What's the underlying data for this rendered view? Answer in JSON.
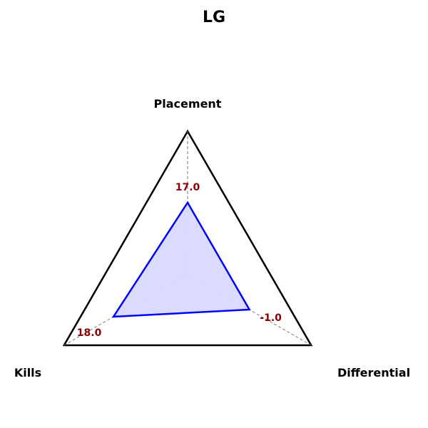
{
  "chart_data": {
    "type": "radar",
    "title": "LG",
    "axes": [
      "Placement",
      "Kills",
      "Differential"
    ],
    "series": [
      {
        "values": [
          17.0,
          18.0,
          -1.0
        ]
      }
    ],
    "value_labels": [
      "17.0",
      "18.0",
      "-1.0"
    ],
    "normalized_levels": [
      0.5,
      0.6,
      0.5
    ],
    "colors": {
      "outline": "#000000",
      "series_line": "#0000ff",
      "series_fill": "#d9d9ff",
      "value_text": "#8b0000",
      "spoke": "#707070"
    },
    "grid": true
  }
}
